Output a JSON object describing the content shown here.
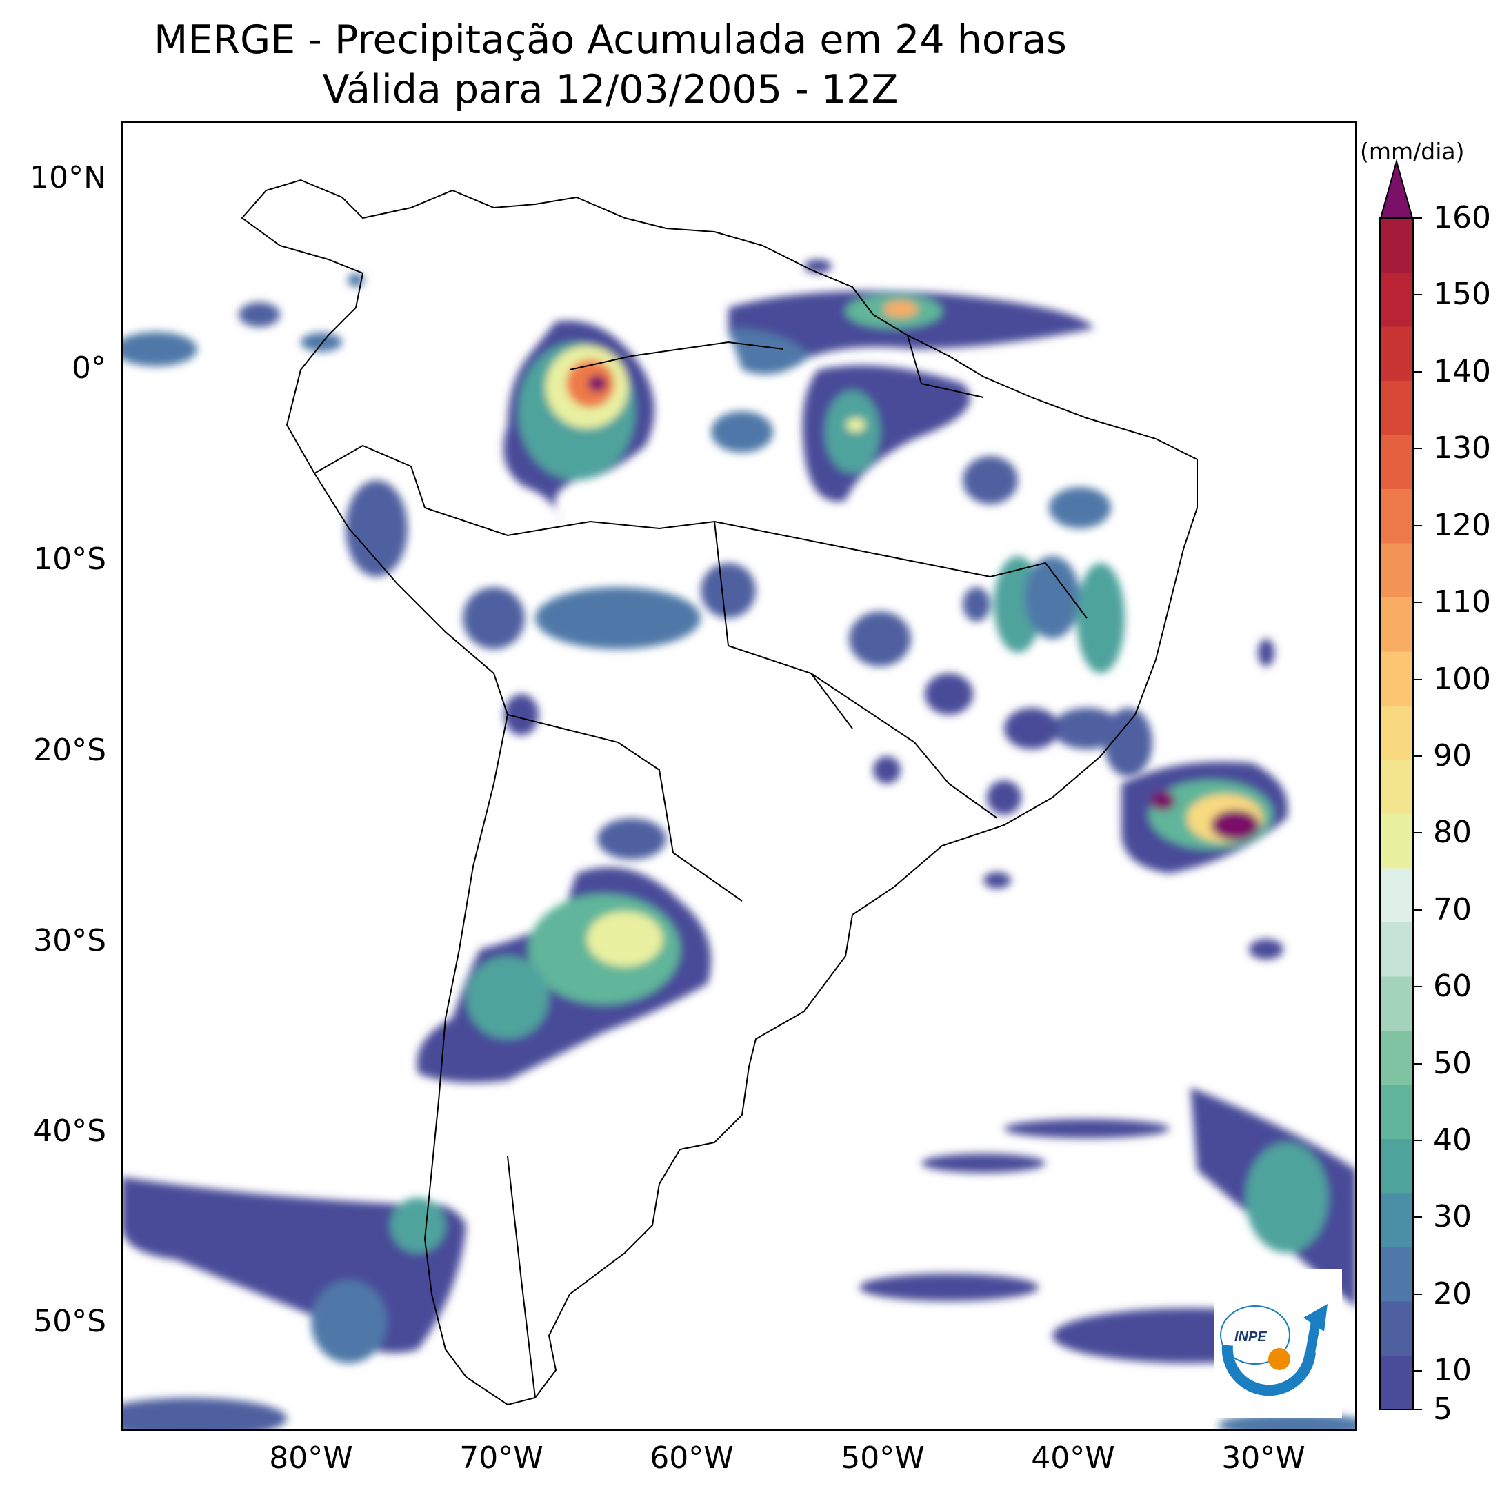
{
  "title": "MERGE - Precipitação Acumulada em 24 horas",
  "subtitle": "Válida para 12/03/2005 - 12Z",
  "map": {
    "extent": {
      "lon": [
        -90,
        -25
      ],
      "lat": [
        -56,
        13
      ]
    },
    "lat_ticks": [
      "10°N",
      "0°",
      "10°S",
      "20°S",
      "30°S",
      "40°S",
      "50°S"
    ],
    "lon_ticks": [
      "80°W",
      "70°W",
      "60°W",
      "50°W",
      "40°W",
      "30°W"
    ],
    "colors": {
      "background": "#ffffff",
      "borders": "#000000"
    }
  },
  "colorbar": {
    "unit": "(mm/dia)",
    "tick_labels": [
      "5",
      "10",
      "20",
      "30",
      "40",
      "50",
      "60",
      "70",
      "80",
      "90",
      "100",
      "110",
      "120",
      "130",
      "140",
      "150",
      "160"
    ],
    "levels": [
      5,
      160
    ],
    "extend": "max",
    "colors": [
      "#4a4b99",
      "#4f60a0",
      "#4f78a8",
      "#4a8fa6",
      "#4fa39d",
      "#61b59a",
      "#80c3a2",
      "#a4d3bb",
      "#c5e3d6",
      "#dff0e8",
      "#e9f0a0",
      "#f3e58d",
      "#f9d980",
      "#fbc571",
      "#f8ad63",
      "#f49356",
      "#ee7a49",
      "#e5603f",
      "#d84837",
      "#c93533",
      "#b82433",
      "#a51b3a",
      "#7b1068"
    ]
  },
  "logo": {
    "text": "INPE",
    "icon": "inpe-logo-icon"
  }
}
